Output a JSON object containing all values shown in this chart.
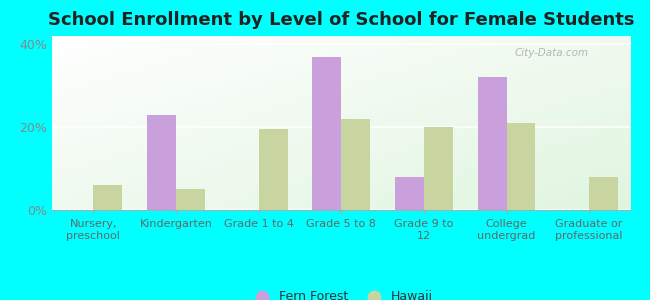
{
  "title": "School Enrollment by Level of School for Female Students",
  "categories": [
    "Nursery,\npreschool",
    "Kindergarten",
    "Grade 1 to 4",
    "Grade 5 to 8",
    "Grade 9 to\n12",
    "College\nundergrad",
    "Graduate or\nprofessional"
  ],
  "fern_forest": [
    0,
    23,
    0,
    37,
    8,
    32,
    0
  ],
  "hawaii": [
    6,
    5,
    19.5,
    22,
    20,
    21,
    8
  ],
  "fern_forest_color": "#c9a0dc",
  "hawaii_color": "#c8d5a0",
  "background_color": "#00ffff",
  "ylim": [
    0,
    42
  ],
  "yticks": [
    0,
    20,
    40
  ],
  "ytick_labels": [
    "0%",
    "20%",
    "40%"
  ],
  "legend_fern_forest": "Fern Forest",
  "legend_hawaii": "Hawaii",
  "bar_width": 0.35,
  "title_fontsize": 13,
  "watermark": "City-Data.com"
}
